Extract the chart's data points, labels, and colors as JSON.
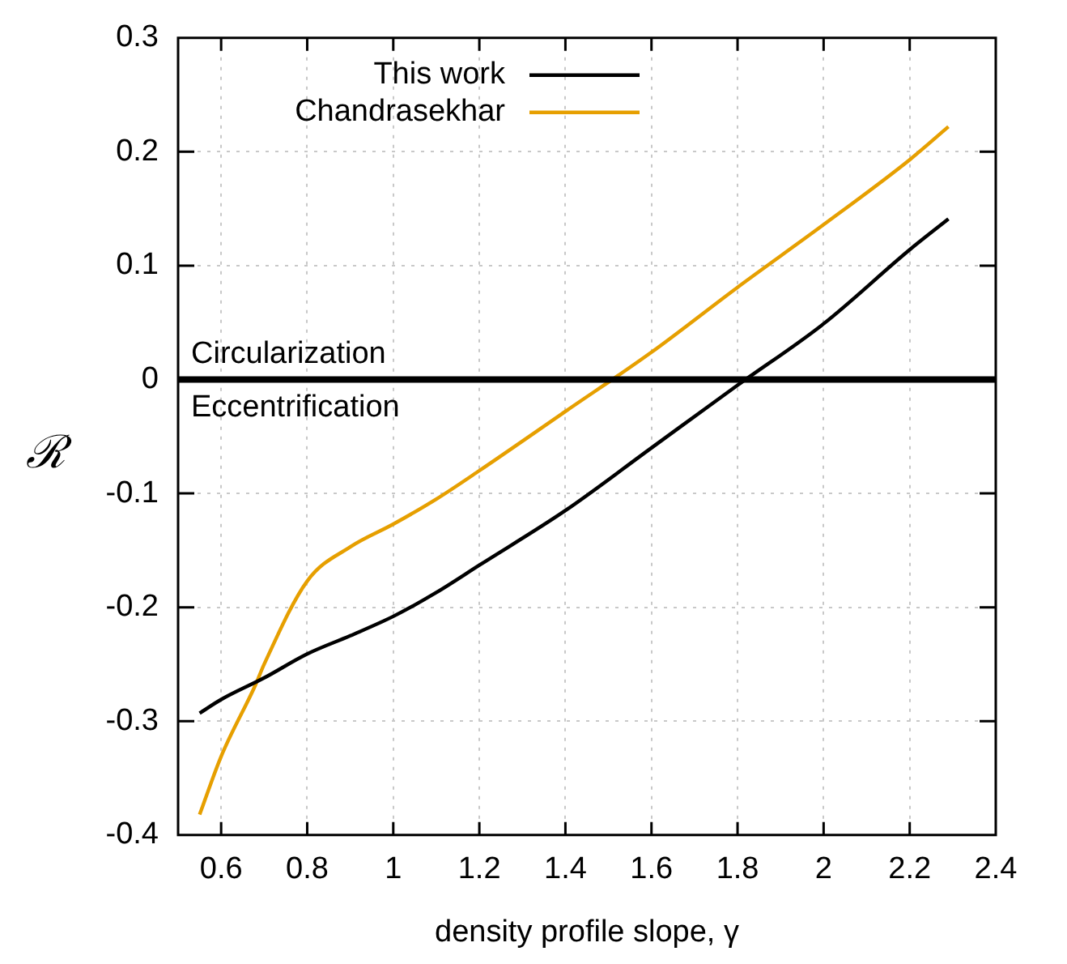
{
  "chart_data": {
    "type": "line",
    "xlabel": "density profile slope, γ",
    "ylabel": "ℛ",
    "xlim": [
      0.5,
      2.4
    ],
    "xticks": [
      0.6,
      0.8,
      1,
      1.2,
      1.4,
      1.6,
      1.8,
      2,
      2.2,
      2.4
    ],
    "ylim": [
      -0.4,
      0.3
    ],
    "yticks": [
      -0.4,
      -0.3,
      -0.2,
      -0.1,
      0,
      0.1,
      0.2,
      0.3
    ],
    "grid": true,
    "legend": "top left",
    "line_style": "solid",
    "marker": "none",
    "series": [
      {
        "name": "This work",
        "color": "#000000",
        "x": [
          0.55,
          0.6,
          0.7,
          0.8,
          0.9,
          1.0,
          1.1,
          1.2,
          1.4,
          1.6,
          1.8,
          2.0,
          2.2,
          2.29
        ],
        "values": [
          -0.293,
          -0.281,
          -0.262,
          -0.241,
          -0.225,
          -0.208,
          -0.187,
          -0.163,
          -0.115,
          -0.06,
          -0.005,
          0.049,
          0.114,
          0.141
        ]
      },
      {
        "name": "Chandrasekhar",
        "color": "#e69f00",
        "x": [
          0.55,
          0.6,
          0.68,
          0.7,
          0.8,
          0.9,
          1.0,
          1.1,
          1.2,
          1.4,
          1.6,
          1.8,
          2.0,
          2.2,
          2.29
        ],
        "values": [
          -0.382,
          -0.331,
          -0.268,
          -0.25,
          -0.177,
          -0.147,
          -0.127,
          -0.105,
          -0.08,
          -0.028,
          0.024,
          0.081,
          0.136,
          0.193,
          0.222
        ]
      }
    ],
    "ref_lines": [
      {
        "axis": "y",
        "value": 0,
        "color": "#000000"
      }
    ],
    "annotations": [
      "Circularization",
      "Eccentrification"
    ]
  }
}
